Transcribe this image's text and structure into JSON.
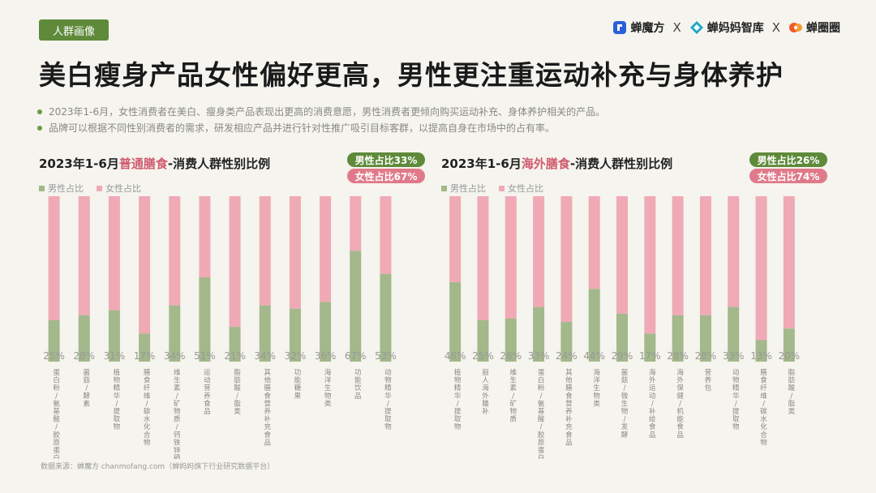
{
  "header": {
    "tag": "人群画像",
    "brands": [
      "蝉魔方",
      "蝉妈妈智库",
      "蝉圈圈"
    ],
    "separator": "X",
    "title": "美白瘦身产品女性偏好更高，男性更注重运动补充与身体养护"
  },
  "bullets": [
    "2023年1-6月，女性消费者在美白、瘦身类产品表现出更高的消费意愿，男性消费者更倾向购买运动补充、身体养护相关的产品。",
    "品牌可以根据不同性别消费者的需求，研发相应产品并进行针对性推广吸引目标客群，以提高自身在市场中的占有率。"
  ],
  "source": "数据来源：蝉魔方 chanmofang.com（蝉妈妈旗下行业研究数据平台）",
  "colors": {
    "male": "#a3b88b",
    "female": "#efaab5",
    "accent_green": "#5e8a3a",
    "accent_pink": "#e07a8a"
  },
  "chart_data": [
    {
      "type": "bar",
      "stacked": true,
      "title_prefix": "2023年1-6月",
      "title_highlight": "普通膳食",
      "title_suffix": "-消费人群性别比例",
      "legend": [
        "男性占比",
        "女性占比"
      ],
      "male_total": "男性占比33%",
      "female_total": "女性占比67%",
      "categories": [
        "蛋白粉/氨基酸/胶原蛋白",
        "菌菇/酵素",
        "植物精华/提取物",
        "膳食纤维/碳水化合物",
        "维生素/矿物质/钙铁锌硒",
        "运动营养食品",
        "脂肪酸/脂类",
        "其他膳食营养补充食品",
        "功能糖果",
        "海洋生物类",
        "功能饮品",
        "动物精华/提取物"
      ],
      "series": [
        {
          "name": "男性占比",
          "values": [
            25,
            28,
            31,
            17,
            34,
            51,
            21,
            34,
            32,
            36,
            67,
            53
          ]
        },
        {
          "name": "女性占比",
          "values": [
            75,
            72,
            69,
            83,
            66,
            49,
            79,
            66,
            68,
            64,
            33,
            47
          ]
        }
      ],
      "labels": [
        "25%",
        "28%",
        "31%",
        "17%",
        "34%",
        "51%",
        "21%",
        "34%",
        "32%",
        "36%",
        "67%",
        "53%"
      ],
      "ylim": [
        0,
        100
      ]
    },
    {
      "type": "bar",
      "stacked": true,
      "title_prefix": "2023年1-6月",
      "title_highlight": "海外膳食",
      "title_suffix": "-消费人群性别比例",
      "legend": [
        "男性占比",
        "女性占比"
      ],
      "male_total": "男性占比26%",
      "female_total": "女性占比74%",
      "categories": [
        "植物精华/提取物",
        "丽人海外膳补",
        "维生素/矿物质",
        "蛋白粉/氨基酸/胶原蛋白",
        "其他膳食营养补充食品",
        "海洋生物类",
        "菌菇/微生物/发酵",
        "海外运动/补给食品",
        "海外保健/机能食品",
        "营养包",
        "动物精华/提取物",
        "膳食纤维/碳水化合物",
        "脂肪酸/脂类"
      ],
      "series": [
        {
          "name": "男性占比",
          "values": [
            48,
            25,
            26,
            33,
            24,
            44,
            29,
            17,
            28,
            28,
            33,
            13,
            20
          ]
        },
        {
          "name": "女性占比",
          "values": [
            52,
            75,
            74,
            67,
            76,
            56,
            71,
            83,
            72,
            72,
            67,
            87,
            80
          ]
        }
      ],
      "labels": [
        "48%",
        "25%",
        "26%",
        "33%",
        "24%",
        "44%",
        "29%",
        "17%",
        "28%",
        "28%",
        "33%",
        "13%",
        "20%"
      ],
      "ylim": [
        0,
        100
      ]
    }
  ]
}
